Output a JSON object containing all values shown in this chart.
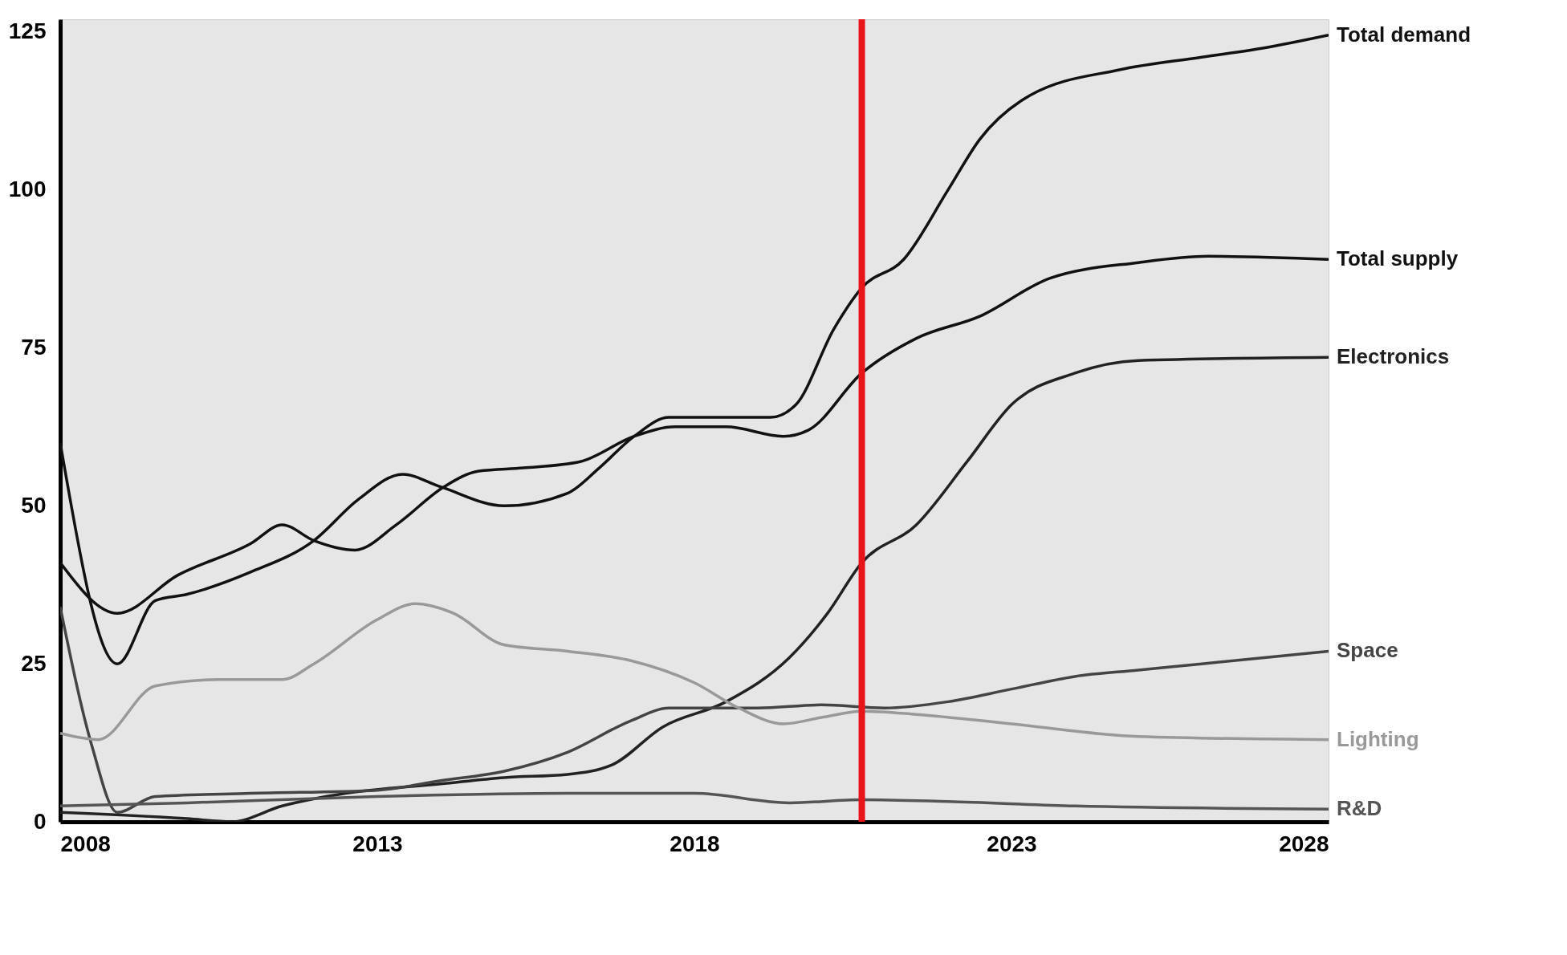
{
  "chart_data": {
    "type": "line",
    "xlim": [
      2008,
      2028
    ],
    "xticks": [
      2008,
      2013,
      2018,
      2023,
      2028
    ],
    "ylim": [
      0,
      127
    ],
    "yticks": [
      0,
      25,
      50,
      75,
      100,
      125
    ],
    "grid": false,
    "legend": false,
    "series": [
      {
        "name": "Total demand",
        "color": "#111111",
        "x": [
          2008,
          2008.9,
          2009.5,
          2010,
          2011,
          2012,
          2012.7,
          2013.4,
          2014,
          2015,
          2016,
          2016.5,
          2017.05,
          2017.6,
          2018.5,
          2019.2,
          2019.6,
          2020.2,
          2020.64,
          2021.3,
          2022,
          2022.5,
          2023.3,
          2024.7,
          2026,
          2027,
          2028
        ],
        "values": [
          60,
          25,
          35,
          36,
          39.5,
          44.5,
          51,
          55,
          53,
          50,
          52,
          56,
          61,
          64,
          64,
          64,
          66,
          78,
          84.5,
          89,
          100,
          108,
          115,
          119,
          121,
          122.5,
          124.5
        ]
      },
      {
        "name": "Total supply",
        "color": "#111111",
        "x": [
          2008,
          2008.9,
          2009.85,
          2011,
          2011.5,
          2012,
          2012.65,
          2013.3,
          2014.05,
          2014.6,
          2015.3,
          2016.2,
          2017.05,
          2017.7,
          2018.5,
          2019.4,
          2019.8,
          2020.64,
          2021.5,
          2022.5,
          2023.6,
          2025,
          2026.1,
          2028
        ],
        "values": [
          41,
          33,
          39,
          44,
          47,
          44.5,
          43,
          47,
          53,
          55.5,
          56,
          57,
          61,
          62.5,
          62.5,
          61,
          62,
          71,
          76.5,
          80,
          86,
          88.5,
          89.5,
          89
        ]
      },
      {
        "name": "Electronics",
        "color": "#222222",
        "x": [
          2008,
          2010,
          2010.7,
          2011.5,
          2012.5,
          2014,
          2015,
          2016,
          2016.7,
          2017.5,
          2018.5,
          2019.5,
          2020.1,
          2020.64,
          2021.5,
          2022.3,
          2023,
          2024,
          2025,
          2028
        ],
        "values": [
          1.5,
          0.5,
          0,
          2.5,
          4.5,
          6,
          7,
          7.5,
          9,
          15,
          19,
          26,
          33,
          41,
          47,
          57,
          66,
          71,
          73,
          73.5
        ]
      },
      {
        "name": "Space",
        "color": "#444444",
        "x": [
          2008,
          2008.5,
          2008.9,
          2009.5,
          2011,
          2013,
          2014,
          2015,
          2016,
          2017,
          2017.6,
          2019,
          2020,
          2021,
          2022,
          2023,
          2024,
          2025,
          2026,
          2028
        ],
        "values": [
          34,
          12,
          1.5,
          4,
          4.5,
          5,
          6.5,
          8,
          11,
          16,
          18,
          18,
          18.5,
          18,
          19,
          21,
          23,
          24,
          25,
          27
        ]
      },
      {
        "name": "Lighting",
        "color": "#999999",
        "x": [
          2008,
          2008.6,
          2009.5,
          2010.5,
          2011.5,
          2012,
          2013,
          2013.6,
          2014.2,
          2015,
          2016,
          2017,
          2018,
          2018.7,
          2019.4,
          2020,
          2020.64,
          2021.5,
          2023,
          2025,
          2028
        ],
        "values": [
          14,
          13,
          21.5,
          22.5,
          22.5,
          25,
          32,
          34.5,
          33,
          28,
          27,
          25.5,
          22,
          18,
          15.5,
          16.5,
          17.5,
          17,
          15.5,
          13.5,
          13
        ]
      },
      {
        "name": "R&D",
        "color": "#555555",
        "x": [
          2008,
          2010,
          2013,
          2016,
          2018,
          2019.5,
          2020.64,
          2022,
          2024,
          2028
        ],
        "values": [
          2.5,
          3,
          4,
          4.5,
          4.5,
          3,
          3.5,
          3.2,
          2.5,
          2
        ]
      }
    ],
    "ref_lines": [
      {
        "axis": "x",
        "value": 2020.64,
        "color": "#e8141a"
      }
    ]
  }
}
